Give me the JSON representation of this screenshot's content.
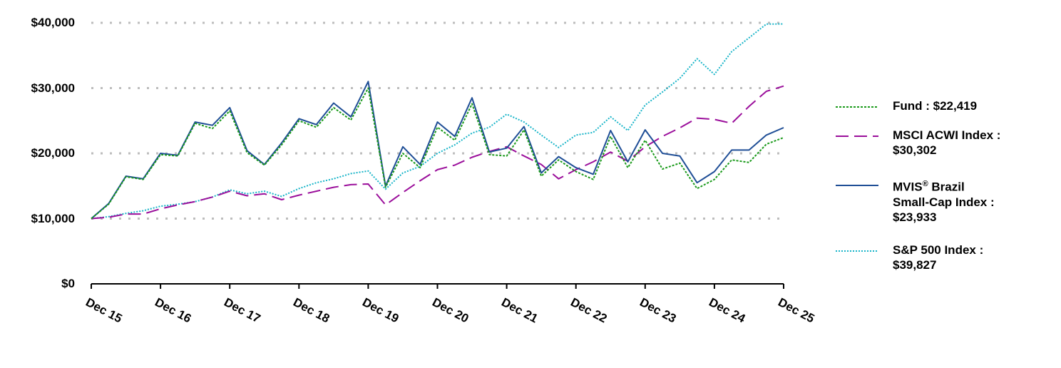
{
  "chart_data": {
    "type": "line",
    "title": "",
    "xlabel": "",
    "ylabel": "",
    "ylim": [
      0,
      40000
    ],
    "grid": true,
    "legend_position": "right",
    "y_ticks": [
      "$0",
      "$10,000",
      "$20,000",
      "$30,000",
      "$40,000"
    ],
    "x_ticks": [
      "Dec 15",
      "Dec 16",
      "Dec 17",
      "Dec 18",
      "Dec 19",
      "Dec 20",
      "Dec 21",
      "Dec 22",
      "Dec 23",
      "Dec 24",
      "Dec 25"
    ],
    "x_note": "quarterly points from Dec 15 to Dec 25 (41 points)",
    "series": [
      {
        "name": "Fund",
        "legend_label": "Fund : $22,419",
        "color": "#1a9a1a",
        "style": "dotted-dense",
        "values": [
          10000,
          12200,
          16400,
          16000,
          19800,
          19600,
          24600,
          23800,
          26500,
          20100,
          18200,
          21300,
          25000,
          24000,
          27000,
          25100,
          30000,
          14800,
          20000,
          17800,
          24000,
          22000,
          27600,
          19800,
          19600,
          23600,
          16500,
          19000,
          17200,
          16000,
          22600,
          17800,
          22000,
          17600,
          18500,
          14600,
          16000,
          19000,
          18600,
          21400,
          22419
        ]
      },
      {
        "name": "MSCI ACWI Index",
        "legend_label": "MSCI ACWI Index : $30,302",
        "color": "#9b0f9b",
        "style": "dashed",
        "values": [
          10000,
          10200,
          10700,
          10700,
          11500,
          12100,
          12600,
          13300,
          14200,
          13500,
          13800,
          12900,
          13600,
          14200,
          14800,
          15200,
          15300,
          12100,
          14000,
          15800,
          17500,
          18200,
          19400,
          20300,
          21000,
          19600,
          18300,
          16100,
          17500,
          18700,
          20200,
          18800,
          21000,
          22600,
          23900,
          25400,
          25200,
          24600,
          27200,
          29500,
          30302
        ]
      },
      {
        "name": "MVIS Brazil Small-Cap Index",
        "legend_label": "MVIS® Brazil Small-Cap Index : $23,933",
        "color": "#1f4e96",
        "style": "solid",
        "values": [
          10000,
          12300,
          16500,
          16100,
          20000,
          19700,
          24800,
          24300,
          27000,
          20400,
          18300,
          21600,
          25300,
          24400,
          27700,
          25600,
          31000,
          15000,
          21000,
          18300,
          24800,
          22600,
          28500,
          20200,
          20800,
          24100,
          17000,
          19500,
          17800,
          16800,
          23500,
          18700,
          23600,
          20000,
          19600,
          15500,
          17200,
          20500,
          20500,
          22800,
          23933
        ]
      },
      {
        "name": "S&P 500 Index",
        "legend_label": "S&P 500 Index : $39,827",
        "color": "#17b4c8",
        "style": "dotted",
        "values": [
          10000,
          10300,
          10800,
          11200,
          11900,
          12200,
          12600,
          13300,
          14400,
          13800,
          14200,
          13400,
          14600,
          15500,
          16100,
          16900,
          17300,
          14500,
          17000,
          18000,
          20000,
          21300,
          23100,
          24000,
          26000,
          24800,
          22800,
          20900,
          22800,
          23200,
          25600,
          23500,
          27400,
          29400,
          31500,
          34500,
          32100,
          35600,
          37700,
          39800,
          39827
        ]
      }
    ]
  },
  "legend": {
    "items": [
      {
        "label": "Fund : $22,419"
      },
      {
        "label": "MSCI ACWI Index :",
        "label2": "$30,302"
      },
      {
        "label": "MVIS",
        "sup": "®",
        "label_b": " Brazil",
        "label2": "Small-Cap Index :",
        "label3": "$23,933"
      },
      {
        "label": "S&P 500 Index :",
        "label2": "$39,827"
      }
    ]
  }
}
